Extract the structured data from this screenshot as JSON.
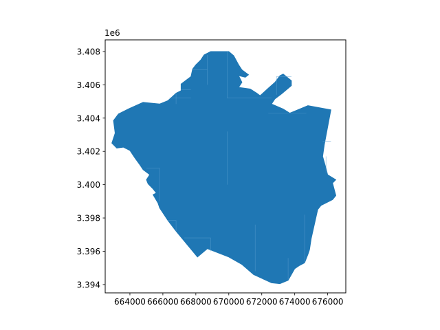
{
  "chart_data": {
    "type": "map",
    "title": "",
    "xlabel": "",
    "ylabel": "",
    "xlim": [
      662500,
      677100
    ],
    "ylim": [
      3393500,
      3408700
    ],
    "y_offset_label": "1e6",
    "x_ticks": [
      {
        "value": 664000,
        "label": "664000"
      },
      {
        "value": 666000,
        "label": "666000"
      },
      {
        "value": 668000,
        "label": "668000"
      },
      {
        "value": 670000,
        "label": "670000"
      },
      {
        "value": 672000,
        "label": "672000"
      },
      {
        "value": 674000,
        "label": "674000"
      },
      {
        "value": 676000,
        "label": "676000"
      }
    ],
    "y_ticks": [
      {
        "value": 3394000,
        "label": "3.394"
      },
      {
        "value": 3396000,
        "label": "3.396"
      },
      {
        "value": 3398000,
        "label": "3.398"
      },
      {
        "value": 3400000,
        "label": "3.400"
      },
      {
        "value": 3402000,
        "label": "3.402"
      },
      {
        "value": 3404000,
        "label": "3.404"
      },
      {
        "value": 3406000,
        "label": "3.406"
      },
      {
        "value": 3408000,
        "label": "3.408"
      }
    ],
    "grid": false,
    "fill_color": "#1f77b4",
    "edge_color": "#5b9fd0",
    "region_outline": [
      [
        663000,
        3403850
      ],
      [
        663300,
        3404250
      ],
      [
        663900,
        3404550
      ],
      [
        664000,
        3404600
      ],
      [
        664800,
        3404950
      ],
      [
        665800,
        3404850
      ],
      [
        666300,
        3405050
      ],
      [
        666800,
        3405500
      ],
      [
        667100,
        3405650
      ],
      [
        667100,
        3406050
      ],
      [
        667500,
        3406350
      ],
      [
        667700,
        3406500
      ],
      [
        667800,
        3406950
      ],
      [
        668000,
        3407200
      ],
      [
        668300,
        3407500
      ],
      [
        668500,
        3407800
      ],
      [
        668900,
        3408000
      ],
      [
        670000,
        3408000
      ],
      [
        670300,
        3407750
      ],
      [
        670600,
        3407200
      ],
      [
        670800,
        3406900
      ],
      [
        671200,
        3406600
      ],
      [
        671000,
        3406450
      ],
      [
        670600,
        3406550
      ],
      [
        670800,
        3406150
      ],
      [
        670600,
        3405850
      ],
      [
        671300,
        3405750
      ],
      [
        671700,
        3405500
      ],
      [
        671900,
        3405350
      ],
      [
        672400,
        3405800
      ],
      [
        672800,
        3406150
      ],
      [
        673100,
        3406550
      ],
      [
        673300,
        3406650
      ],
      [
        673800,
        3406250
      ],
      [
        673800,
        3405950
      ],
      [
        673200,
        3405450
      ],
      [
        672800,
        3405150
      ],
      [
        672600,
        3404850
      ],
      [
        673300,
        3404550
      ],
      [
        673700,
        3404300
      ],
      [
        674800,
        3404750
      ],
      [
        676200,
        3404500
      ],
      [
        675800,
        3402400
      ],
      [
        675700,
        3401700
      ],
      [
        675900,
        3401000
      ],
      [
        676000,
        3400600
      ],
      [
        676500,
        3400300
      ],
      [
        676300,
        3400100
      ],
      [
        676500,
        3399350
      ],
      [
        676300,
        3399100
      ],
      [
        675600,
        3398750
      ],
      [
        675400,
        3398500
      ],
      [
        675000,
        3396750
      ],
      [
        674900,
        3396100
      ],
      [
        674800,
        3395800
      ],
      [
        674600,
        3395300
      ],
      [
        674300,
        3395150
      ],
      [
        674000,
        3394950
      ],
      [
        673800,
        3394600
      ],
      [
        673600,
        3394250
      ],
      [
        673100,
        3394050
      ],
      [
        672600,
        3394100
      ],
      [
        671500,
        3394600
      ],
      [
        670800,
        3395200
      ],
      [
        670000,
        3395650
      ],
      [
        668700,
        3396150
      ],
      [
        668100,
        3395650
      ],
      [
        667300,
        3396600
      ],
      [
        666800,
        3397200
      ],
      [
        666300,
        3397850
      ],
      [
        665800,
        3398600
      ],
      [
        665700,
        3398900
      ],
      [
        665400,
        3399400
      ],
      [
        665600,
        3399500
      ],
      [
        665400,
        3399750
      ],
      [
        665100,
        3400050
      ],
      [
        665000,
        3400300
      ],
      [
        665200,
        3400600
      ],
      [
        664800,
        3400900
      ],
      [
        664600,
        3401200
      ],
      [
        664300,
        3401600
      ],
      [
        664100,
        3401900
      ],
      [
        664000,
        3402050
      ],
      [
        663600,
        3402250
      ],
      [
        663200,
        3402200
      ],
      [
        662900,
        3402500
      ],
      [
        663100,
        3403100
      ],
      [
        663000,
        3403850
      ]
    ],
    "internal_boundaries": [
      [
        [
          669900,
          3408000
        ],
        [
          669900,
          3405200
        ],
        [
          672600,
          3405200
        ]
      ],
      [
        [
          668700,
          3407800
        ],
        [
          668700,
          3406000
        ]
      ],
      [
        [
          667800,
          3406900
        ],
        [
          668700,
          3406900
        ]
      ],
      [
        [
          666800,
          3405500
        ],
        [
          666800,
          3404850
        ]
      ],
      [
        [
          666400,
          3405200
        ],
        [
          667700,
          3405200
        ]
      ],
      [
        [
          667100,
          3405700
        ],
        [
          667700,
          3405700
        ]
      ],
      [
        [
          665800,
          3401000
        ],
        [
          665800,
          3399000
        ]
      ],
      [
        [
          665000,
          3401000
        ],
        [
          665800,
          3401000
        ]
      ],
      [
        [
          666300,
          3397850
        ],
        [
          666800,
          3397850
        ],
        [
          666800,
          3397200
        ]
      ],
      [
        [
          667300,
          3396800
        ],
        [
          668900,
          3396800
        ],
        [
          668900,
          3396000
        ]
      ],
      [
        [
          669900,
          3403200
        ],
        [
          669900,
          3400000
        ]
      ],
      [
        [
          671600,
          3397600
        ],
        [
          671600,
          3394800
        ]
      ],
      [
        [
          673600,
          3395600
        ],
        [
          673600,
          3394300
        ]
      ],
      [
        [
          674600,
          3398200
        ],
        [
          674600,
          3395300
        ]
      ],
      [
        [
          675700,
          3402600
        ],
        [
          676200,
          3402600
        ]
      ],
      [
        [
          675900,
          3401700
        ],
        [
          675900,
          3400700
        ]
      ],
      [
        [
          673800,
          3406500
        ],
        [
          672900,
          3406500
        ],
        [
          672900,
          3405400
        ]
      ],
      [
        [
          672400,
          3404300
        ],
        [
          674700,
          3404300
        ]
      ]
    ]
  }
}
